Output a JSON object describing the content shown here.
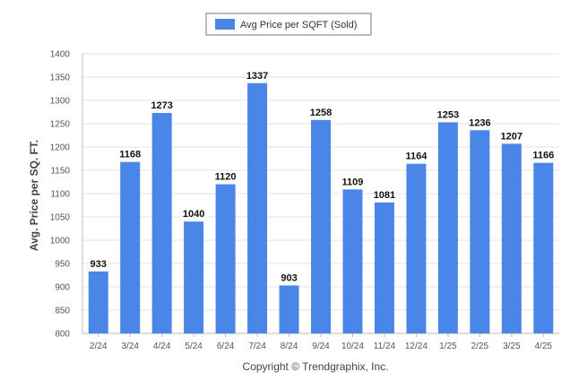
{
  "chart_data": {
    "type": "bar",
    "categories": [
      "2/24",
      "3/24",
      "4/24",
      "5/24",
      "6/24",
      "7/24",
      "8/24",
      "9/24",
      "10/24",
      "11/24",
      "12/24",
      "1/25",
      "2/25",
      "3/25",
      "4/25"
    ],
    "series": [
      {
        "name": "Avg Price per SQFT (Sold)",
        "values": [
          933,
          1168,
          1273,
          1040,
          1120,
          1337,
          903,
          1258,
          1109,
          1081,
          1164,
          1253,
          1236,
          1207,
          1166
        ],
        "color": "#4a86e8"
      }
    ],
    "title": "",
    "xlabel": "",
    "ylabel": "Avg. Price per SQ. FT.",
    "ylim": [
      800,
      1400
    ],
    "yticks": [
      800,
      850,
      900,
      950,
      1000,
      1050,
      1100,
      1150,
      1200,
      1250,
      1300,
      1350,
      1400
    ],
    "grid": true,
    "legend_position": "top-center",
    "data_labels": true
  },
  "footer": {
    "copyright": "Copyright © Trendgraphix, Inc."
  },
  "colors": {
    "bar": "#4a86e8",
    "grid": "#e3e3e3",
    "axis": "#bbbbbb"
  }
}
